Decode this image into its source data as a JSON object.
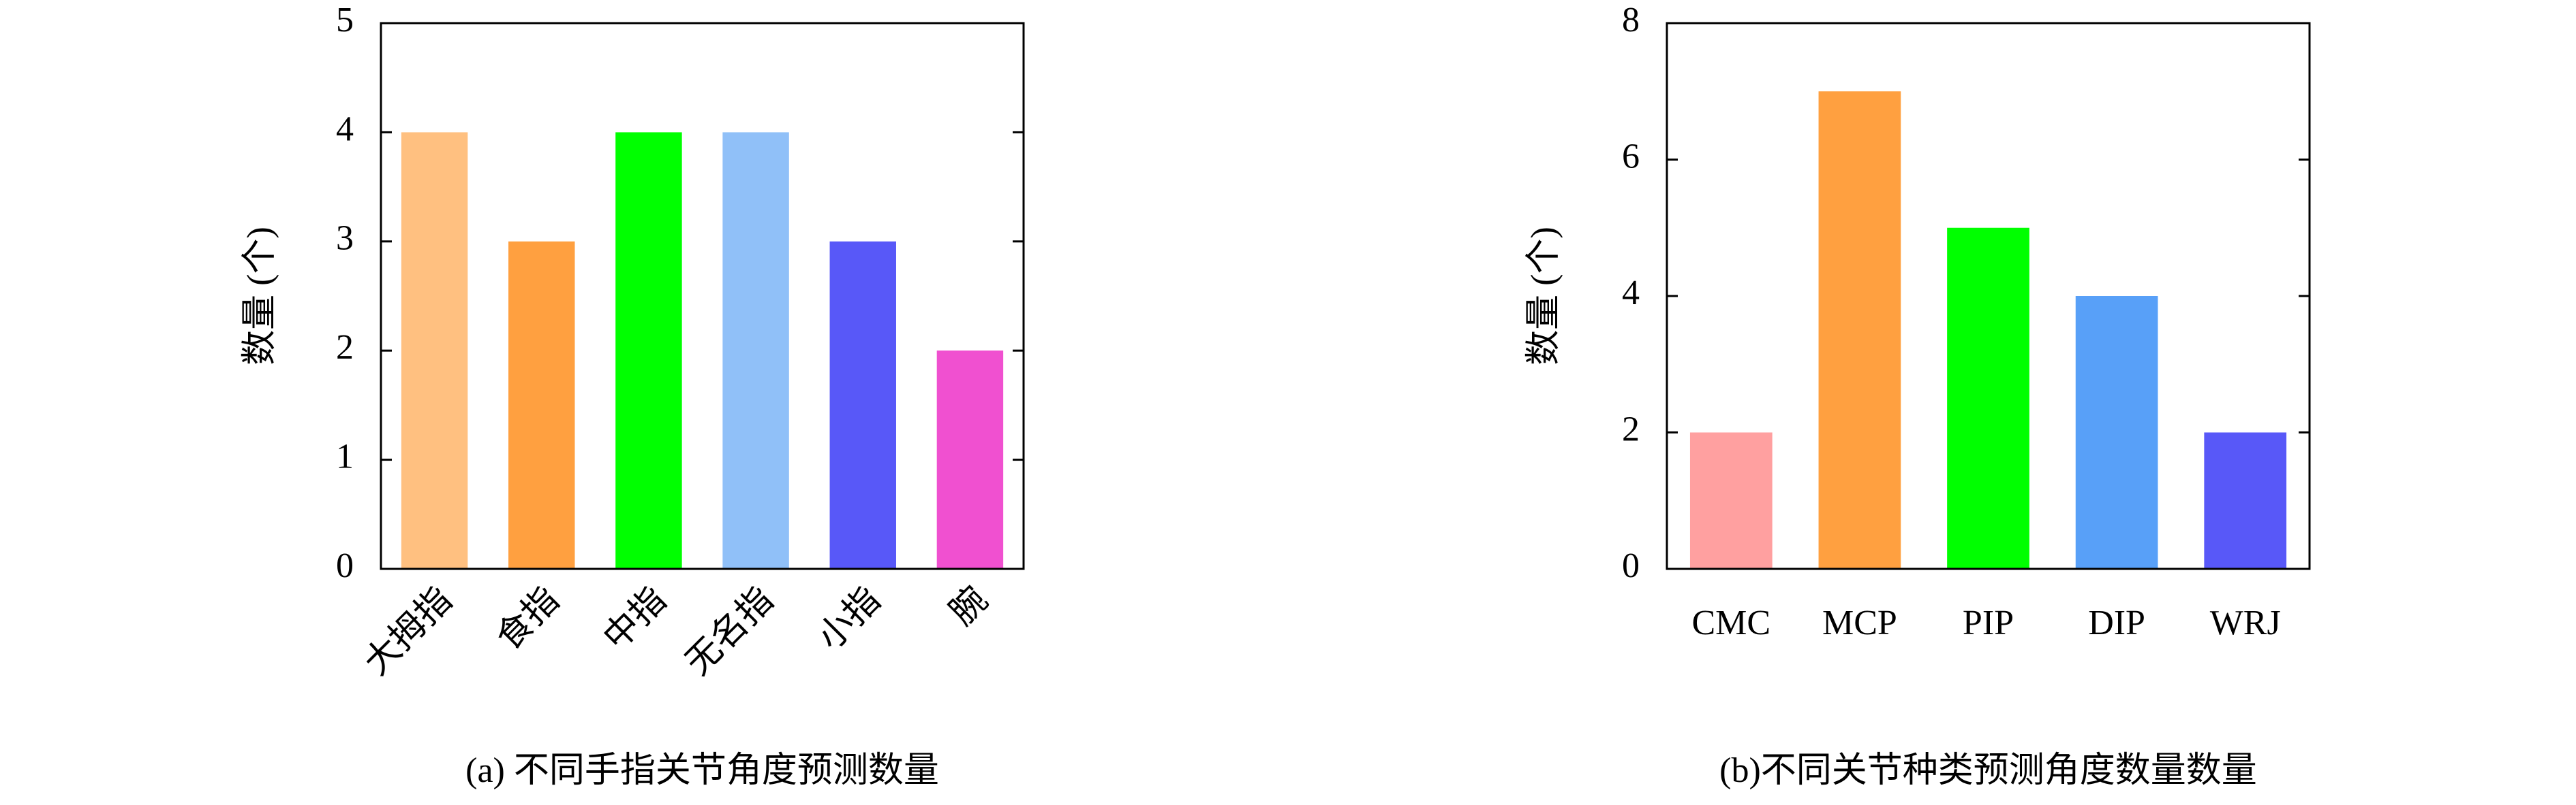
{
  "chart_data": [
    {
      "type": "bar",
      "ylabel": "数量 (个)",
      "caption": "(a) 不同手指关节角度预测数量",
      "categories": [
        "大拇指",
        "食指",
        "中指",
        "无名指",
        "小指",
        "腕"
      ],
      "values": [
        4,
        3,
        4,
        4,
        3,
        2
      ],
      "colors": [
        "#ffc080",
        "#ffa040",
        "#00ff00",
        "#90c0f8",
        "#5858f8",
        "#f050d0"
      ],
      "ylim": [
        0,
        5
      ],
      "yticks": [
        0,
        1,
        2,
        3,
        4,
        5
      ],
      "rotate_xlabels": true
    },
    {
      "type": "bar",
      "ylabel": "数量 (个)",
      "caption": "(b)不同关节种类预测角度数量数量",
      "categories": [
        "CMC",
        "MCP",
        "PIP",
        "DIP",
        "WRJ"
      ],
      "values": [
        2,
        7,
        5,
        4,
        2
      ],
      "colors": [
        "#ffa0a0",
        "#ffa040",
        "#00ff00",
        "#58a0f8",
        "#5858f8"
      ],
      "ylim": [
        0,
        8
      ],
      "yticks": [
        0,
        2,
        4,
        6,
        8
      ],
      "rotate_xlabels": false
    }
  ]
}
